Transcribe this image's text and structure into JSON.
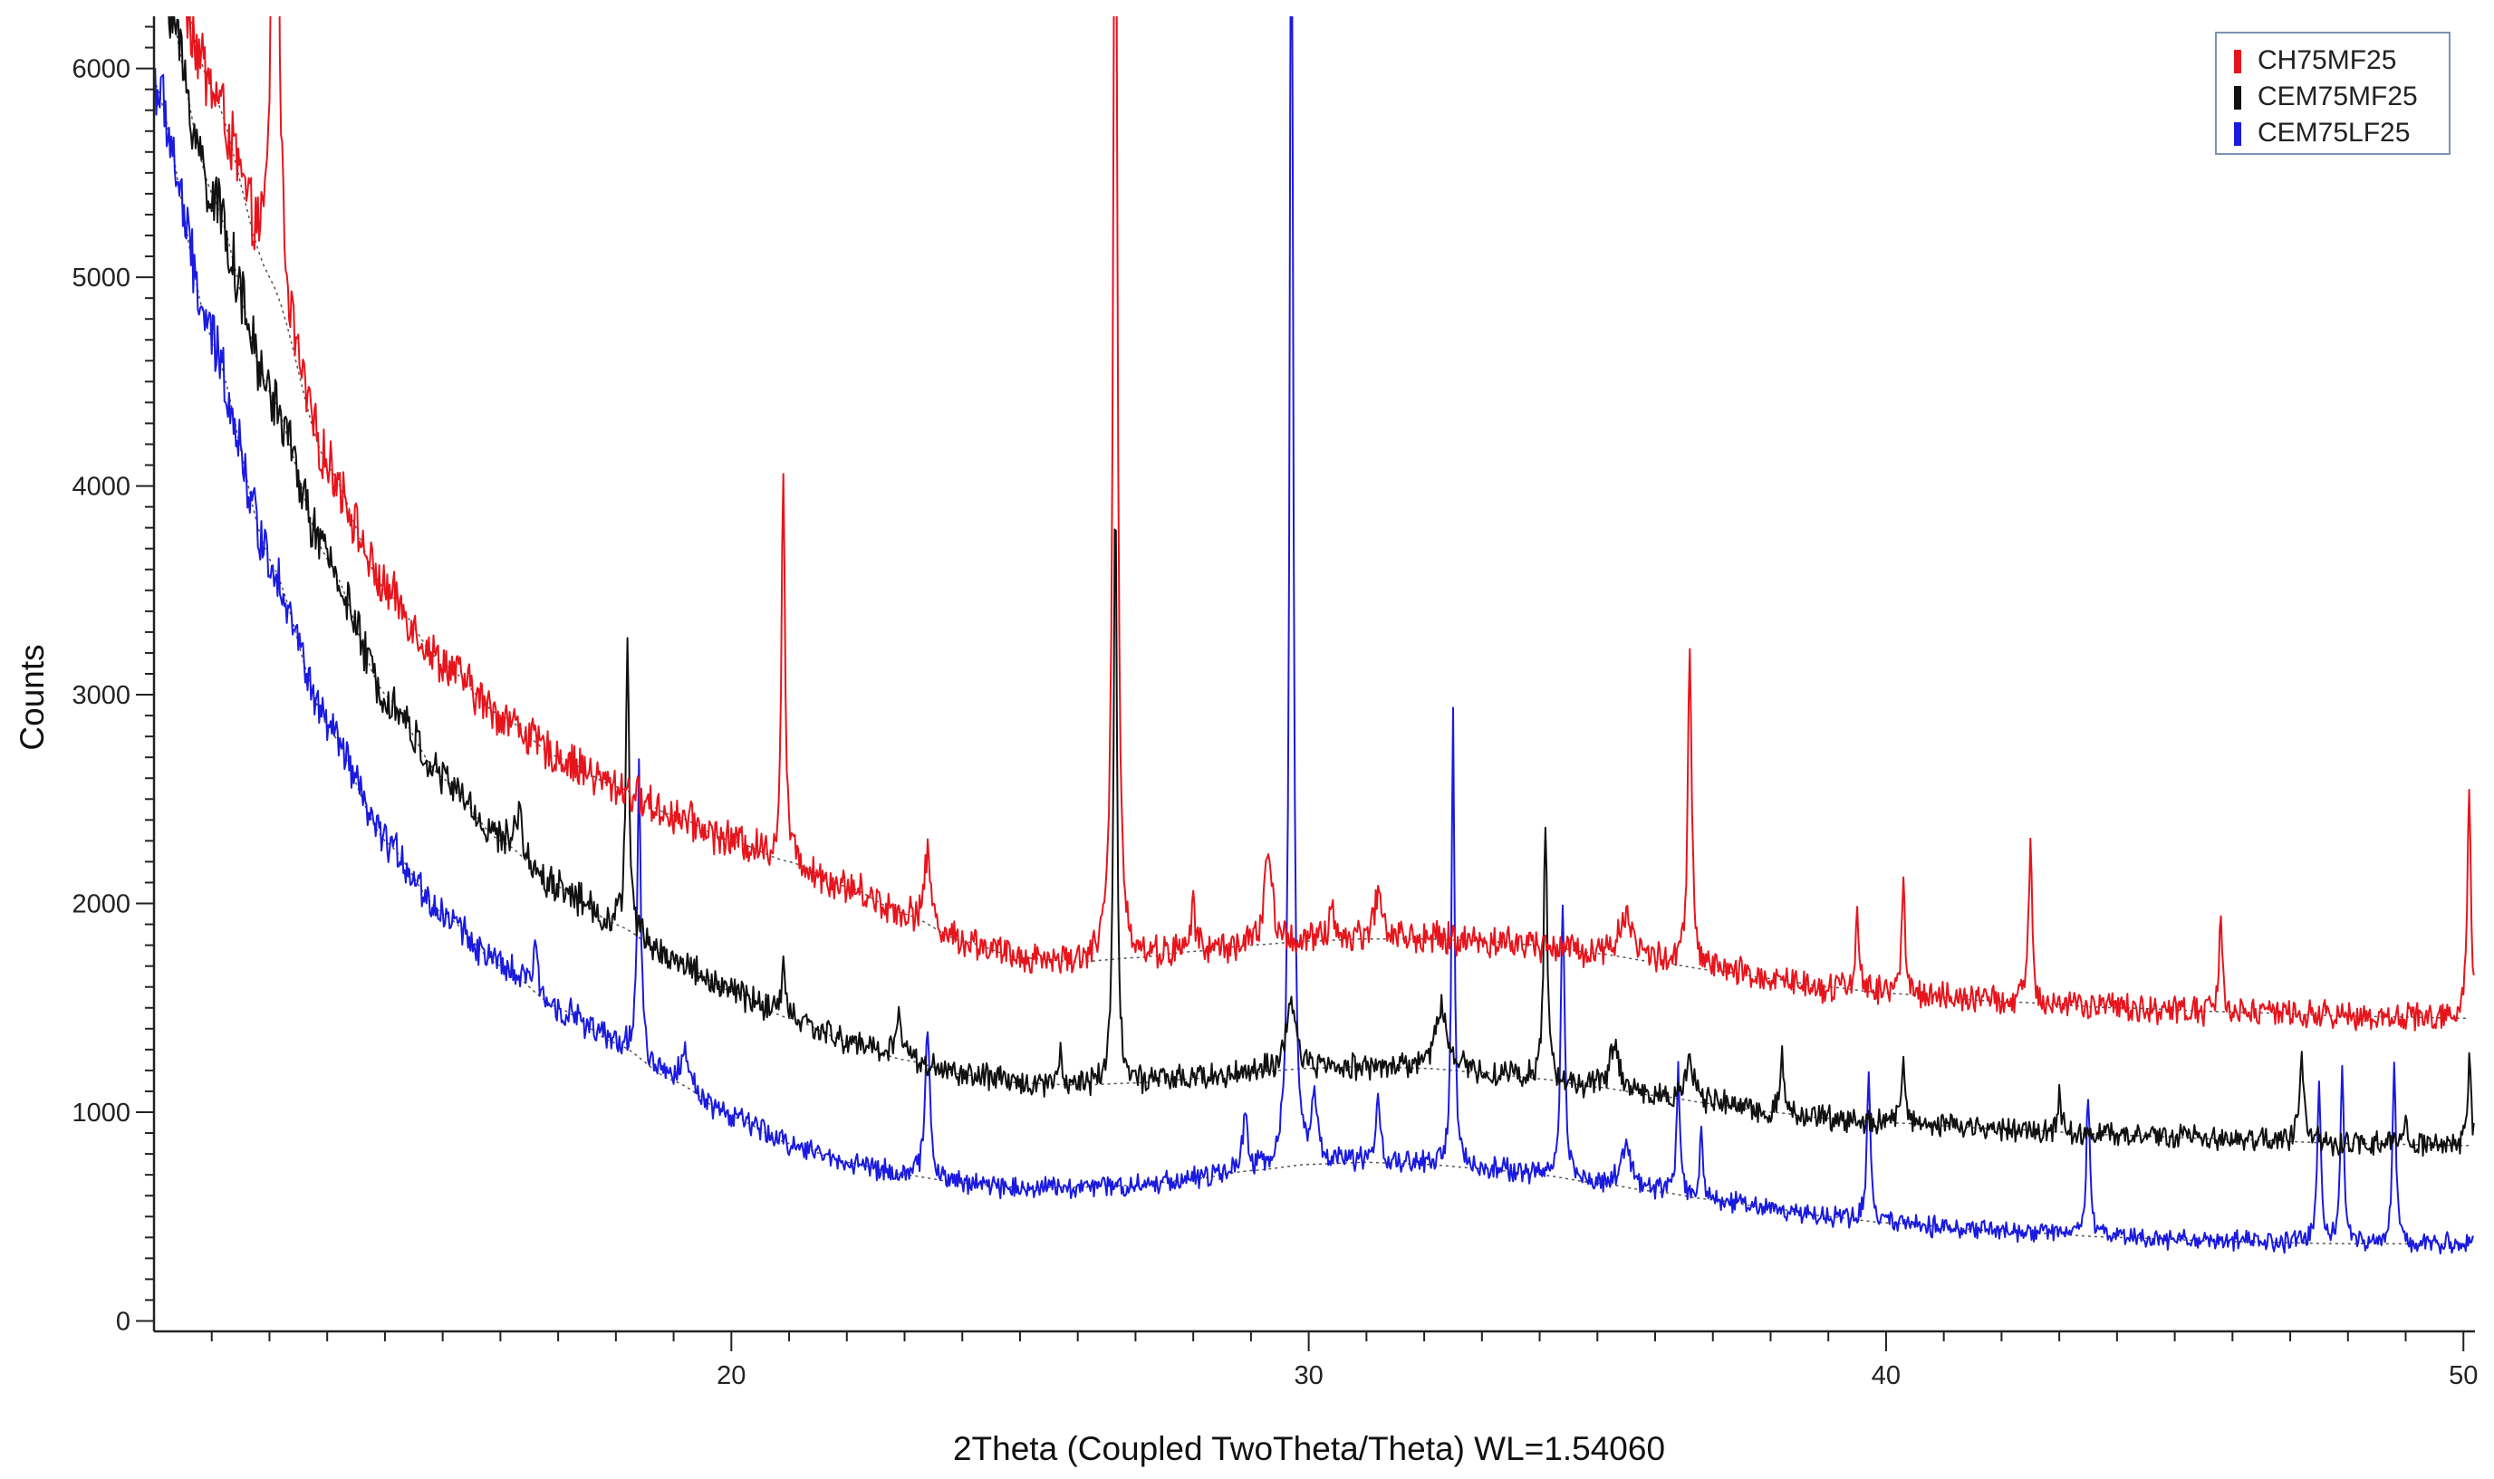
{
  "chart_data": {
    "type": "line",
    "xlabel": "2Theta (Coupled TwoTheta/Theta) WL=1.54060",
    "ylabel": "Counts",
    "xlim": [
      10.0,
      50.2
    ],
    "ylim": [
      -50,
      6250
    ],
    "x_ticks": [
      20,
      30,
      40,
      50
    ],
    "y_ticks": [
      0,
      1000,
      2000,
      3000,
      4000,
      5000,
      6000
    ],
    "grid": false,
    "legend_position": "top-right",
    "series": [
      {
        "name": "CH75MF25",
        "color": "#e8141c",
        "background": [
          [
            10.0,
            6900
          ],
          [
            11.0,
            5900
          ],
          [
            12.0,
            5000
          ],
          [
            13.0,
            4100
          ],
          [
            14.0,
            3500
          ],
          [
            15.0,
            3150
          ],
          [
            16.0,
            2900
          ],
          [
            17.0,
            2700
          ],
          [
            18.0,
            2560
          ],
          [
            19.0,
            2420
          ],
          [
            20.0,
            2300
          ],
          [
            21.0,
            2200
          ],
          [
            22.0,
            2080
          ],
          [
            23.0,
            1950
          ],
          [
            24.0,
            1820
          ],
          [
            25.0,
            1740
          ],
          [
            26.0,
            1720
          ],
          [
            27.0,
            1740
          ],
          [
            28.0,
            1770
          ],
          [
            29.0,
            1800
          ],
          [
            30.0,
            1820
          ],
          [
            31.0,
            1830
          ],
          [
            32.0,
            1830
          ],
          [
            33.0,
            1820
          ],
          [
            34.0,
            1800
          ],
          [
            35.0,
            1760
          ],
          [
            36.0,
            1720
          ],
          [
            37.0,
            1680
          ],
          [
            38.0,
            1640
          ],
          [
            39.0,
            1600
          ],
          [
            40.0,
            1570
          ],
          [
            42.0,
            1530
          ],
          [
            44.0,
            1500
          ],
          [
            46.0,
            1480
          ],
          [
            48.0,
            1460
          ],
          [
            50.2,
            1450
          ]
        ],
        "peaks": [
          [
            12.1,
            4600,
            0.1
          ],
          [
            20.9,
            1900,
            0.07
          ],
          [
            23.4,
            350,
            0.12
          ],
          [
            26.65,
            6300,
            0.08
          ],
          [
            28.0,
            250,
            0.08
          ],
          [
            29.3,
            450,
            0.15
          ],
          [
            30.4,
            200,
            0.08
          ],
          [
            31.2,
            200,
            0.2
          ],
          [
            36.6,
            1500,
            0.08
          ],
          [
            35.5,
            200,
            0.3
          ],
          [
            39.5,
            400,
            0.07
          ],
          [
            40.3,
            550,
            0.07
          ],
          [
            42.5,
            800,
            0.07
          ],
          [
            45.8,
            450,
            0.07
          ],
          [
            50.1,
            1150,
            0.07
          ]
        ]
      },
      {
        "name": "CEM75MF25",
        "color": "#111111",
        "background": [
          [
            10.0,
            6600
          ],
          [
            11.0,
            5400
          ],
          [
            12.0,
            4450
          ],
          [
            13.0,
            3650
          ],
          [
            14.0,
            3000
          ],
          [
            15.0,
            2600
          ],
          [
            16.0,
            2300
          ],
          [
            17.0,
            2080
          ],
          [
            18.0,
            1900
          ],
          [
            19.0,
            1730
          ],
          [
            20.0,
            1580
          ],
          [
            21.0,
            1450
          ],
          [
            22.0,
            1340
          ],
          [
            23.0,
            1250
          ],
          [
            24.0,
            1180
          ],
          [
            25.0,
            1140
          ],
          [
            26.0,
            1130
          ],
          [
            27.0,
            1140
          ],
          [
            28.0,
            1160
          ],
          [
            29.0,
            1190
          ],
          [
            30.0,
            1210
          ],
          [
            31.0,
            1220
          ],
          [
            32.0,
            1210
          ],
          [
            33.0,
            1190
          ],
          [
            34.0,
            1160
          ],
          [
            35.0,
            1120
          ],
          [
            36.0,
            1080
          ],
          [
            37.0,
            1040
          ],
          [
            38.0,
            1000
          ],
          [
            39.0,
            970
          ],
          [
            40.0,
            950
          ],
          [
            42.0,
            920
          ],
          [
            44.0,
            890
          ],
          [
            46.0,
            870
          ],
          [
            48.0,
            850
          ],
          [
            50.2,
            840
          ]
        ],
        "peaks": [
          [
            16.3,
            200,
            0.15
          ],
          [
            18.2,
            1400,
            0.07
          ],
          [
            20.9,
            250,
            0.08
          ],
          [
            22.9,
            200,
            0.15
          ],
          [
            25.7,
            150,
            0.08
          ],
          [
            26.65,
            2850,
            0.07
          ],
          [
            29.7,
            300,
            0.2
          ],
          [
            32.3,
            300,
            0.25
          ],
          [
            34.1,
            1250,
            0.07
          ],
          [
            35.3,
            200,
            0.2
          ],
          [
            36.6,
            200,
            0.15
          ],
          [
            38.2,
            300,
            0.07
          ],
          [
            40.3,
            350,
            0.07
          ],
          [
            43.0,
            200,
            0.07
          ],
          [
            47.2,
            400,
            0.1
          ],
          [
            49.0,
            150,
            0.08
          ],
          [
            50.1,
            400,
            0.07
          ]
        ]
      },
      {
        "name": "CEM75LF25",
        "color": "#1a1ae0",
        "background": [
          [
            10.0,
            5950
          ],
          [
            11.0,
            4700
          ],
          [
            12.0,
            3650
          ],
          [
            13.0,
            2850
          ],
          [
            14.0,
            2300
          ],
          [
            15.0,
            1950
          ],
          [
            16.0,
            1700
          ],
          [
            17.0,
            1500
          ],
          [
            18.0,
            1330
          ],
          [
            19.0,
            1150
          ],
          [
            20.0,
            980
          ],
          [
            21.0,
            850
          ],
          [
            22.0,
            760
          ],
          [
            23.0,
            700
          ],
          [
            24.0,
            660
          ],
          [
            25.0,
            640
          ],
          [
            26.0,
            640
          ],
          [
            27.0,
            650
          ],
          [
            28.0,
            680
          ],
          [
            29.0,
            720
          ],
          [
            30.0,
            750
          ],
          [
            31.0,
            760
          ],
          [
            32.0,
            750
          ],
          [
            33.0,
            730
          ],
          [
            34.0,
            700
          ],
          [
            35.0,
            660
          ],
          [
            36.0,
            620
          ],
          [
            37.0,
            580
          ],
          [
            38.0,
            540
          ],
          [
            39.0,
            500
          ],
          [
            40.0,
            470
          ],
          [
            42.0,
            430
          ],
          [
            44.0,
            400
          ],
          [
            46.0,
            380
          ],
          [
            48.0,
            370
          ],
          [
            50.2,
            370
          ]
        ],
        "peaks": [
          [
            16.6,
            250,
            0.08
          ],
          [
            18.4,
            1400,
            0.07
          ],
          [
            19.2,
            150,
            0.2
          ],
          [
            23.4,
            700,
            0.1
          ],
          [
            28.9,
            250,
            0.1
          ],
          [
            29.7,
            6700,
            0.07
          ],
          [
            30.1,
            300,
            0.12
          ],
          [
            31.2,
            350,
            0.07
          ],
          [
            32.5,
            2200,
            0.06
          ],
          [
            34.4,
            1300,
            0.08
          ],
          [
            35.5,
            200,
            0.2
          ],
          [
            36.4,
            600,
            0.07
          ],
          [
            36.8,
            300,
            0.07
          ],
          [
            39.7,
            750,
            0.07
          ],
          [
            43.5,
            700,
            0.07
          ],
          [
            47.5,
            800,
            0.07
          ],
          [
            47.9,
            850,
            0.07
          ],
          [
            48.8,
            850,
            0.07
          ]
        ]
      }
    ]
  }
}
